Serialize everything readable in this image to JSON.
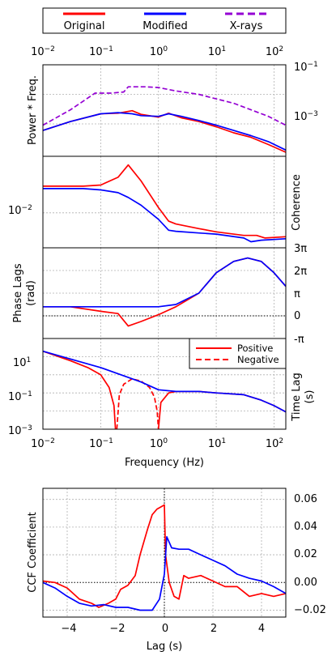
{
  "legend": {
    "entries": [
      {
        "label": "Original",
        "color": "#ff0000",
        "dash": "solid"
      },
      {
        "label": "Modified",
        "color": "#0000ff",
        "dash": "solid"
      },
      {
        "label": "X-rays",
        "color": "#9400d3",
        "dash": "dashed"
      }
    ]
  },
  "colors": {
    "original": "#ff0000",
    "modified": "#0000ff",
    "xrays": "#9400d3"
  },
  "chart_data": [
    {
      "type": "line",
      "panel": "power",
      "ylabel": "Power * Freq.",
      "xscale": "log",
      "yscale": "log",
      "xlim": [
        0.01,
        160
      ],
      "ylim": [
        8e-05,
        0.1
      ],
      "x_ticks_top": [
        "10^-2",
        "10^-1",
        "10^0",
        "10^1",
        "10^2"
      ],
      "y_ticks_right": [
        "10^-1",
        "10^-3"
      ],
      "grid": true,
      "series": [
        {
          "name": "Original",
          "x": [
            0.01,
            0.03,
            0.1,
            0.2,
            0.35,
            0.5,
            1.0,
            1.5,
            2.5,
            5,
            10,
            20,
            40,
            80,
            160
          ],
          "y": [
            0.0006,
            0.0012,
            0.0022,
            0.0023,
            0.0028,
            0.0021,
            0.0017,
            0.0023,
            0.0016,
            0.0012,
            0.0008,
            0.0005,
            0.00035,
            0.0002,
            0.00011
          ]
        },
        {
          "name": "Modified",
          "x": [
            0.01,
            0.03,
            0.1,
            0.2,
            0.35,
            0.5,
            1.0,
            1.5,
            2.5,
            5,
            10,
            20,
            40,
            80,
            160
          ],
          "y": [
            0.0006,
            0.0012,
            0.0022,
            0.0024,
            0.0022,
            0.0019,
            0.0018,
            0.0022,
            0.0018,
            0.0013,
            0.0009,
            0.0006,
            0.0004,
            0.00025,
            0.00013
          ]
        },
        {
          "name": "X-rays",
          "x": [
            0.01,
            0.03,
            0.08,
            0.15,
            0.25,
            0.3,
            0.6,
            1.0,
            2,
            5,
            10,
            20,
            40,
            80,
            160
          ],
          "y": [
            0.0009,
            0.003,
            0.011,
            0.011,
            0.012,
            0.018,
            0.018,
            0.017,
            0.013,
            0.01,
            0.007,
            0.005,
            0.003,
            0.0018,
            0.0009
          ]
        }
      ]
    },
    {
      "type": "line",
      "panel": "coherence",
      "ylabel": "Coherence",
      "xscale": "log",
      "yscale": "log",
      "xlim": [
        0.01,
        160
      ],
      "ylim": [
        0.003,
        0.07
      ],
      "y_ticks_left": [
        "10^-2"
      ],
      "grid": true,
      "series": [
        {
          "name": "Original",
          "x": [
            0.01,
            0.05,
            0.1,
            0.2,
            0.3,
            0.5,
            1.0,
            1.5,
            2.0,
            5,
            10,
            30,
            50,
            70,
            160
          ],
          "y": [
            0.025,
            0.025,
            0.026,
            0.034,
            0.052,
            0.03,
            0.012,
            0.0075,
            0.0068,
            0.0058,
            0.0052,
            0.0046,
            0.0046,
            0.0042,
            0.0044
          ]
        },
        {
          "name": "Modified",
          "x": [
            0.01,
            0.05,
            0.1,
            0.2,
            0.3,
            0.5,
            1.0,
            1.5,
            2.0,
            5,
            10,
            30,
            40,
            60,
            160
          ],
          "y": [
            0.023,
            0.023,
            0.022,
            0.02,
            0.017,
            0.013,
            0.008,
            0.0055,
            0.0053,
            0.005,
            0.0048,
            0.0042,
            0.0037,
            0.0039,
            0.0041
          ]
        }
      ]
    },
    {
      "type": "line",
      "panel": "phase_lags",
      "ylabel": "Phase Lags (rad)",
      "xscale": "log",
      "xlim": [
        0.01,
        160
      ],
      "ylim": [
        -1,
        3
      ],
      "y_ticks_right": [
        "-π",
        "0",
        "π",
        "2π",
        "3π"
      ],
      "y_unit": "π rad",
      "grid": true,
      "series": [
        {
          "name": "Original",
          "x": [
            0.01,
            0.03,
            0.1,
            0.2,
            0.3,
            0.5,
            1.0,
            2,
            5,
            10,
            20,
            35,
            60,
            100,
            160
          ],
          "y": [
            0.4,
            0.4,
            0.2,
            0.1,
            -0.45,
            -0.25,
            0.05,
            0.4,
            1.0,
            1.9,
            2.4,
            2.55,
            2.4,
            1.9,
            1.3
          ]
        },
        {
          "name": "Modified",
          "x": [
            0.01,
            0.1,
            1.0,
            2,
            5,
            10,
            20,
            35,
            60,
            100,
            160
          ],
          "y": [
            0.4,
            0.4,
            0.4,
            0.5,
            1.0,
            1.9,
            2.4,
            2.55,
            2.4,
            1.9,
            1.3
          ]
        }
      ]
    },
    {
      "type": "line",
      "panel": "time_lag",
      "ylabel": "Time Lag (s)",
      "xlabel": "Frequency (Hz)",
      "xscale": "log",
      "yscale": "log",
      "xlim": [
        0.01,
        160
      ],
      "ylim": [
        0.001,
        100
      ],
      "x_ticks": [
        "10^-2",
        "10^-1",
        "10^0",
        "10^1",
        "10^2"
      ],
      "y_ticks_left": [
        "10^1",
        "10^-1",
        "10^-3"
      ],
      "legend_entries": [
        {
          "label": "Positive",
          "dash": "solid",
          "color": "#ff0000"
        },
        {
          "label": "Negative",
          "dash": "dashed",
          "color": "#ff0000"
        }
      ],
      "legend_position": "top-right",
      "grid": true,
      "series": [
        {
          "name": "Original",
          "x": [
            0.01,
            0.03,
            0.06,
            0.1,
            0.14,
            0.17,
            0.18
          ],
          "y": [
            20,
            6,
            2.5,
            1.0,
            0.2,
            0.02,
            0.001
          ]
        },
        {
          "name": "Original",
          "x": [
            0.19,
            0.21,
            0.25,
            0.35,
            0.5,
            0.7,
            0.85,
            0.95,
            1.0
          ],
          "y": [
            0.001,
            0.08,
            0.3,
            0.6,
            0.45,
            0.2,
            0.06,
            0.01,
            0.001
          ],
          "dash": "dashed"
        },
        {
          "name": "Original",
          "x": [
            1.0,
            1.1,
            1.5,
            2,
            5,
            10,
            30,
            60,
            100,
            160
          ],
          "y": [
            0.001,
            0.03,
            0.1,
            0.12,
            0.12,
            0.1,
            0.08,
            0.04,
            0.02,
            0.009
          ]
        },
        {
          "name": "Modified",
          "x": [
            0.01,
            0.1,
            0.5,
            1.0,
            2,
            5,
            10,
            30,
            60,
            100,
            160
          ],
          "y": [
            20,
            2.5,
            0.4,
            0.15,
            0.12,
            0.12,
            0.1,
            0.08,
            0.04,
            0.02,
            0.009
          ]
        }
      ]
    },
    {
      "type": "line",
      "panel": "ccf",
      "ylabel": "CCF Coefficient",
      "xlabel": "Lag (s)",
      "xlim": [
        -5,
        5
      ],
      "ylim": [
        -0.025,
        0.068
      ],
      "x_ticks": [
        "−4",
        "−2",
        "0",
        "2",
        "4"
      ],
      "y_ticks_right": [
        "0.06",
        "0.04",
        "0.02",
        "0.00",
        "−0.02"
      ],
      "grid": true,
      "series": [
        {
          "name": "Original",
          "x": [
            -5,
            -4.5,
            -4,
            -3.5,
            -3,
            -2.7,
            -2.3,
            -2,
            -1.8,
            -1.5,
            -1.2,
            -1,
            -0.7,
            -0.5,
            -0.3,
            -0.1,
            0,
            0.05,
            0.2,
            0.4,
            0.6,
            0.8,
            1,
            1.5,
            2,
            2.5,
            3,
            3.5,
            4,
            4.5,
            5
          ],
          "y": [
            0.001,
            0.0,
            -0.004,
            -0.012,
            -0.015,
            -0.018,
            -0.015,
            -0.012,
            -0.005,
            -0.002,
            0.005,
            0.02,
            0.038,
            0.049,
            0.053,
            0.055,
            0.056,
            0.02,
            0.0,
            -0.01,
            -0.012,
            0.005,
            0.003,
            0.005,
            0.001,
            -0.003,
            -0.003,
            -0.01,
            -0.008,
            -0.01,
            -0.008
          ]
        },
        {
          "name": "Modified",
          "x": [
            -5,
            -4.5,
            -4,
            -3.5,
            -3,
            -2.5,
            -2,
            -1.5,
            -1,
            -0.5,
            -0.2,
            0,
            0.1,
            0.3,
            0.6,
            1,
            1.5,
            2,
            2.5,
            3,
            3.5,
            4,
            4.5,
            5
          ],
          "y": [
            0.0,
            -0.004,
            -0.01,
            -0.015,
            -0.017,
            -0.016,
            -0.018,
            -0.018,
            -0.02,
            -0.02,
            -0.012,
            0.006,
            0.033,
            0.025,
            0.024,
            0.024,
            0.02,
            0.016,
            0.012,
            0.006,
            0.003,
            0.001,
            -0.003,
            -0.008
          ]
        }
      ]
    }
  ],
  "axis_labels": {
    "power_ylabel": "Power * Freq.",
    "coherence_ylabel": "Coherence",
    "phase_ylabel_1": "Phase Lags",
    "phase_ylabel_2": "(rad)",
    "timelag_ylabel_1": "Time Lag",
    "timelag_ylabel_2": "(s)",
    "freq_xlabel": "Frequency (Hz)",
    "ccf_ylabel": "CCF Coefficient",
    "lag_xlabel": "Lag (s)"
  },
  "tick_labels": {
    "freq": [
      "10",
      "10",
      "10",
      "10",
      "10"
    ],
    "freq_exp": [
      "−2",
      "−1",
      "0",
      "1",
      "2"
    ],
    "power_right": [
      "10",
      "10"
    ],
    "power_right_exp": [
      "−1",
      "−3"
    ],
    "coh_left": [
      "10"
    ],
    "coh_left_exp": [
      "−2"
    ],
    "phase_right": [
      "3π",
      "2π",
      "π",
      "0",
      "-π"
    ],
    "tl_left": [
      "10",
      "10",
      "10"
    ],
    "tl_left_exp": [
      "1",
      "−1",
      "−3"
    ],
    "ccf_x": [
      "−4",
      "−2",
      "0",
      "2",
      "4"
    ],
    "ccf_y": [
      "0.06",
      "0.04",
      "0.02",
      "0.00",
      "−0.02"
    ]
  },
  "inner_legend": {
    "positive": "Positive",
    "negative": "Negative"
  }
}
